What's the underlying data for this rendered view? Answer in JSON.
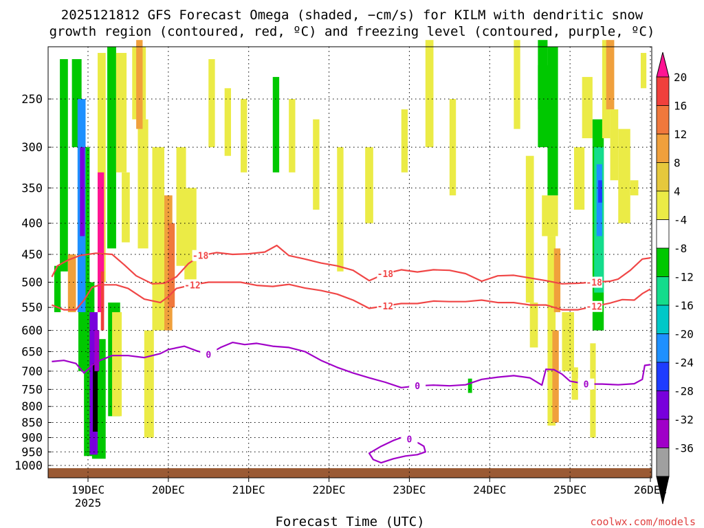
{
  "chart_data": {
    "type": "heatmap",
    "title_line1": "2025121812 GFS Forecast Omega (shaded, −cm/s) for KILM with dendritic snow",
    "title_line2": "growth region (contoured, red, ºC) and freezing level (contoured, purple, ºC)",
    "xlabel": "Forecast Time (UTC)",
    "ylabel": "",
    "credit": "coolwx.com/models",
    "x_ticks": [
      "19DEC",
      "20DEC",
      "21DEC",
      "22DEC",
      "23DEC",
      "24DEC",
      "25DEC",
      "26DEC"
    ],
    "x_year": "2025",
    "y_ticks": [
      250,
      300,
      350,
      400,
      450,
      500,
      550,
      600,
      650,
      700,
      750,
      800,
      850,
      900,
      950,
      1000
    ],
    "y_scale": "log",
    "y_range": [
      200,
      1030
    ],
    "x_range_days": [
      18.55,
      26.0
    ],
    "grid": true,
    "colorbar": {
      "position": "right",
      "labels": [
        20,
        16,
        12,
        8,
        4,
        -4,
        -8,
        -12,
        -16,
        -20,
        -24,
        -28,
        -32,
        -36
      ],
      "colors": [
        "#ff1493",
        "#f0403c",
        "#f0783c",
        "#f0a03c",
        "#e6c83c",
        "#ebeb46",
        "#ffffff",
        "#00c800",
        "#14dc8c",
        "#00c8c8",
        "#1e90ff",
        "#1e3cff",
        "#7800dc",
        "#a000c8",
        "#a0a0a0",
        "#000000"
      ]
    },
    "contours": [
      {
        "label": "-18",
        "color": "#f04646",
        "points": [
          [
            18.55,
            490
          ],
          [
            18.62,
            470
          ],
          [
            18.75,
            460
          ],
          [
            18.9,
            452
          ],
          [
            19.1,
            448
          ],
          [
            19.3,
            450
          ],
          [
            19.45,
            468
          ],
          [
            19.6,
            488
          ],
          [
            19.8,
            503
          ],
          [
            19.95,
            502
          ],
          [
            20.1,
            490
          ],
          [
            20.25,
            466
          ],
          [
            20.4,
            452
          ],
          [
            20.6,
            447
          ],
          [
            20.8,
            450
          ],
          [
            21.0,
            449
          ],
          [
            21.2,
            446
          ],
          [
            21.35,
            435
          ],
          [
            21.5,
            452
          ],
          [
            21.7,
            458
          ],
          [
            21.9,
            465
          ],
          [
            22.1,
            470
          ],
          [
            22.3,
            478
          ],
          [
            22.5,
            497
          ],
          [
            22.7,
            484
          ],
          [
            22.9,
            477
          ],
          [
            23.1,
            481
          ],
          [
            23.3,
            477
          ],
          [
            23.5,
            478
          ],
          [
            23.7,
            484
          ],
          [
            23.9,
            498
          ],
          [
            24.1,
            488
          ],
          [
            24.3,
            487
          ],
          [
            24.5,
            492
          ],
          [
            24.7,
            497
          ],
          [
            24.9,
            503
          ],
          [
            25.1,
            502
          ],
          [
            25.3,
            500
          ],
          [
            25.5,
            498
          ],
          [
            25.6,
            494
          ],
          [
            25.75,
            478
          ],
          [
            25.9,
            458
          ],
          [
            26.0,
            456
          ]
        ]
      },
      {
        "label": "-12",
        "color": "#f04646",
        "points": [
          [
            18.55,
            545
          ],
          [
            18.7,
            555
          ],
          [
            18.85,
            555
          ],
          [
            18.95,
            535
          ],
          [
            19.05,
            510
          ],
          [
            19.15,
            505
          ],
          [
            19.35,
            505
          ],
          [
            19.5,
            512
          ],
          [
            19.7,
            533
          ],
          [
            19.9,
            540
          ],
          [
            20.0,
            528
          ],
          [
            20.1,
            512
          ],
          [
            20.3,
            505
          ],
          [
            20.5,
            500
          ],
          [
            20.7,
            500
          ],
          [
            20.9,
            500
          ],
          [
            21.1,
            506
          ],
          [
            21.3,
            508
          ],
          [
            21.5,
            504
          ],
          [
            21.7,
            511
          ],
          [
            21.9,
            516
          ],
          [
            22.1,
            523
          ],
          [
            22.3,
            535
          ],
          [
            22.5,
            552
          ],
          [
            22.7,
            547
          ],
          [
            22.9,
            542
          ],
          [
            23.1,
            542
          ],
          [
            23.3,
            537
          ],
          [
            23.5,
            538
          ],
          [
            23.7,
            538
          ],
          [
            23.9,
            535
          ],
          [
            24.1,
            540
          ],
          [
            24.3,
            540
          ],
          [
            24.5,
            545
          ],
          [
            24.7,
            545
          ],
          [
            24.9,
            555
          ],
          [
            25.1,
            555
          ],
          [
            25.3,
            548
          ],
          [
            25.5,
            541
          ],
          [
            25.65,
            534
          ],
          [
            25.8,
            535
          ],
          [
            25.9,
            522
          ],
          [
            26.0,
            513
          ]
        ]
      },
      {
        "label": "0",
        "color": "#a000c8",
        "points": [
          [
            18.55,
            675
          ],
          [
            18.7,
            672
          ],
          [
            18.85,
            680
          ],
          [
            18.95,
            705
          ],
          [
            19.05,
            685
          ],
          [
            19.15,
            672
          ],
          [
            19.3,
            660
          ],
          [
            19.5,
            660
          ],
          [
            19.7,
            665
          ],
          [
            19.9,
            655
          ],
          [
            20.0,
            645
          ],
          [
            20.2,
            637
          ],
          [
            20.35,
            648
          ],
          [
            20.5,
            657
          ],
          [
            20.65,
            640
          ],
          [
            20.8,
            628
          ],
          [
            20.95,
            633
          ],
          [
            21.1,
            630
          ],
          [
            21.3,
            637
          ],
          [
            21.5,
            640
          ],
          [
            21.7,
            650
          ],
          [
            21.9,
            672
          ],
          [
            22.1,
            690
          ],
          [
            22.3,
            705
          ],
          [
            22.5,
            718
          ],
          [
            22.7,
            730
          ],
          [
            22.9,
            745
          ],
          [
            23.1,
            740
          ],
          [
            23.3,
            738
          ],
          [
            23.5,
            740
          ],
          [
            23.7,
            737
          ],
          [
            23.9,
            722
          ],
          [
            24.1,
            716
          ],
          [
            24.3,
            712
          ],
          [
            24.5,
            718
          ],
          [
            24.65,
            738
          ],
          [
            24.7,
            695
          ],
          [
            24.8,
            696
          ],
          [
            24.9,
            708
          ],
          [
            25.0,
            727
          ],
          [
            25.2,
            735
          ],
          [
            25.4,
            735
          ],
          [
            25.6,
            737
          ],
          [
            25.8,
            734
          ],
          [
            25.9,
            722
          ],
          [
            25.93,
            685
          ],
          [
            26.0,
            683
          ]
        ]
      },
      {
        "label": "0",
        "color": "#a000c8",
        "closed": true,
        "points": [
          [
            22.5,
            955
          ],
          [
            22.65,
            930
          ],
          [
            22.8,
            910
          ],
          [
            22.9,
            900
          ],
          [
            23.0,
            905
          ],
          [
            23.12,
            920
          ],
          [
            23.18,
            930
          ],
          [
            23.2,
            950
          ],
          [
            23.1,
            960
          ],
          [
            22.95,
            965
          ],
          [
            22.8,
            975
          ],
          [
            22.65,
            990
          ],
          [
            22.55,
            978
          ]
        ]
      }
    ]
  }
}
